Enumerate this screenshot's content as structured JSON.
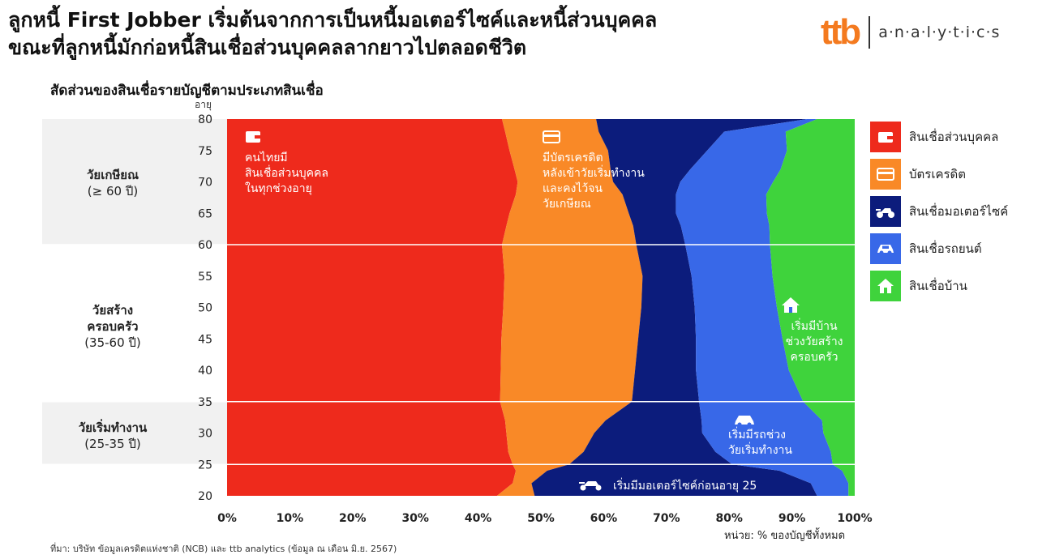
{
  "header": {
    "title_line1": "ลูกหนี้ First Jobber เริ่มต้นจากการเป็นหนี้มอเตอร์ไซค์และหนี้ส่วนบุคคล",
    "title_line2": "ขณะที่ลูกหนี้มักก่อหนี้สินเชื่อส่วนบุคคลลากยาวไปตลอดชีวิต"
  },
  "logo": {
    "mark": "ttb",
    "text": "a·n·a·l·y·t·i·c·s"
  },
  "subtitle": "สัดส่วนของสินเชื่อรายบัญชีตามประเภทสินเชื่อ",
  "stages": [
    {
      "name": "วัยเกษียณ",
      "range": "(≥ 60 ปี)"
    },
    {
      "name": "วัยสร้าง ครอบครัว",
      "line1": "วัยสร้าง",
      "line2": "ครอบครัว",
      "range": "(35-60 ปี)"
    },
    {
      "name": "วัยเริ่มทำงาน",
      "range": "(25-35 ปี)"
    }
  ],
  "annotations": {
    "personal": [
      "คนไทยมี",
      "สินเชื่อส่วนบุคคล",
      "ในทุกช่วงอายุ"
    ],
    "card": [
      "มีบัตรเครดิต",
      "หลังเข้าวัยเริ่มทำงาน",
      "และคงไว้จน",
      "วัยเกษียณ"
    ],
    "home": [
      "เริ่มมีบ้าน",
      "ช่วงวัยสร้าง",
      "ครอบครัว"
    ],
    "car": [
      "เริ่มมีรถช่วง",
      "วัยเริ่มทำงาน"
    ],
    "moto": "เริ่มมีมอเตอร์ไซค์ก่อนอายุ 25"
  },
  "footer": {
    "unit": "หน่วย: % ของบัญชีทั้งหมด",
    "source": "ที่มา: บริษัท ข้อมูลเครดิตแห่งชาติ (NCB) และ ttb analytics (ข้อมูล ณ เดือน มิ.ย. 2567)"
  },
  "chart_data": {
    "type": "area",
    "orientation": "horizontal-stacked-100",
    "title": "สัดส่วนของสินเชื่อรายบัญชีตามประเภทสินเชื่อ",
    "xlabel": "หน่วย: % ของบัญชีทั้งหมด",
    "ylabel": "อายุ",
    "xlim": [
      0,
      100
    ],
    "ylim": [
      20,
      80
    ],
    "x_ticks": [
      "0%",
      "10%",
      "20%",
      "30%",
      "40%",
      "50%",
      "60%",
      "70%",
      "80%",
      "90%",
      "100%"
    ],
    "y_ticks": [
      "20",
      "25",
      "30",
      "35",
      "40",
      "45",
      "50",
      "55",
      "60",
      "65",
      "70",
      "75",
      "80"
    ],
    "age": [
      20,
      22,
      24,
      25,
      27,
      30,
      32,
      35,
      40,
      45,
      50,
      55,
      60,
      63,
      65,
      68,
      70,
      72,
      75,
      78,
      80
    ],
    "series": [
      {
        "name": "สินเชื่อส่วนบุคคล",
        "color": "#ee2a1c",
        "values": [
          43,
          45.5,
          46,
          45.5,
          44.8,
          44.5,
          44.3,
          43.5,
          43.6,
          43.7,
          44,
          44.2,
          43.8,
          44.5,
          45,
          46,
          46.3,
          45.8,
          45,
          44.3,
          43.8
        ]
      },
      {
        "name": "บัตรเครดิต",
        "color": "#f98927",
        "values": [
          6,
          3,
          5,
          9,
          12,
          14,
          16,
          21,
          21.4,
          21.8,
          22,
          22,
          21.4,
          20.2,
          19,
          17,
          15.2,
          15.3,
          15.7,
          14.9,
          15
        ]
      },
      {
        "name": "สินเชื่อมอเตอร์ไซค์",
        "color": "#0c1c7c",
        "values": [
          45,
          44.5,
          37,
          26,
          21,
          17.2,
          15.3,
          10.7,
          9.7,
          9.2,
          8.5,
          7.8,
          7.8,
          7.6,
          7.5,
          8.5,
          10.7,
          12.7,
          15.8,
          20,
          33.6
        ]
      },
      {
        "name": "สินเชื่อรถยนต์",
        "color": "#3868e8",
        "values": [
          5,
          6,
          10,
          16,
          18.4,
          19.3,
          19.2,
          16.6,
          14.8,
          13.8,
          13.1,
          12.9,
          13.5,
          14.1,
          14.5,
          14.4,
          14.8,
          14.4,
          12.7,
          9.8,
          1.6
        ]
      },
      {
        "name": "สินเชื่อบ้าน",
        "color": "#3fd33c",
        "values": [
          1,
          1,
          2,
          3.5,
          3.8,
          5,
          5.2,
          8.2,
          10.5,
          11.5,
          12.4,
          13.1,
          13.5,
          13.6,
          14,
          14.1,
          13,
          11.8,
          10.8,
          11,
          6
        ]
      }
    ],
    "legend_position": "right"
  }
}
